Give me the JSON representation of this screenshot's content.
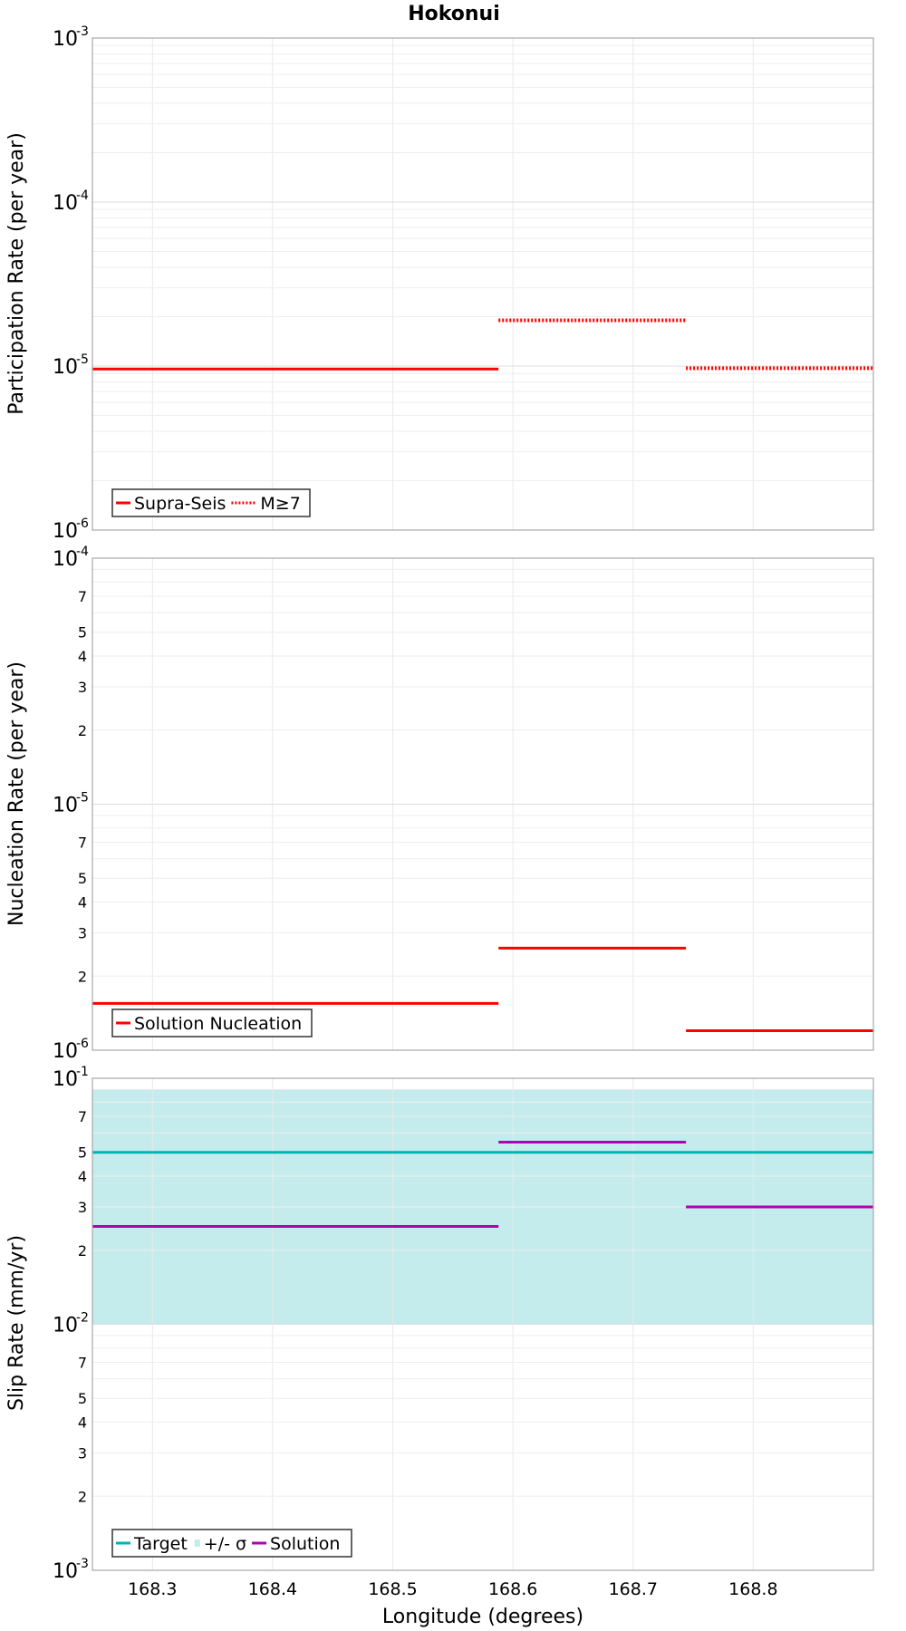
{
  "chart_data": [
    {
      "type": "line",
      "title": "Hokonui",
      "ylabel": "Participation Rate (per year)",
      "yscale": "log",
      "ylim": [
        1e-06,
        0.001
      ],
      "xlim": [
        168.25,
        168.9
      ],
      "ytick_exponents": [
        "-6",
        "-5",
        "-4",
        "-3"
      ],
      "minor_labels": false,
      "grid": true,
      "legend_position": "bottom-left",
      "legend": [
        {
          "label": "Supra-Seis",
          "color": "#ff0000",
          "style": "solid"
        },
        {
          "label": "M≥7",
          "color": "#ff0000",
          "style": "dotted"
        }
      ],
      "series": [
        {
          "name": "Supra-Seis",
          "color": "#ff0000",
          "style": "solid",
          "segments": [
            {
              "x": [
                168.25,
                168.588
              ],
              "y": 9.6e-06
            }
          ]
        },
        {
          "name": "M≥7",
          "color": "#ff0000",
          "style": "dotted",
          "segments": [
            {
              "x": [
                168.588,
                168.744
              ],
              "y": 1.9e-05
            },
            {
              "x": [
                168.744,
                168.9
              ],
              "y": 9.7e-06
            }
          ]
        }
      ]
    },
    {
      "type": "line",
      "ylabel": "Nucleation Rate (per year)",
      "yscale": "log",
      "ylim": [
        1e-06,
        0.0001
      ],
      "xlim": [
        168.25,
        168.9
      ],
      "ytick_exponents": [
        "-6",
        "-5",
        "-4"
      ],
      "minor_labels": true,
      "grid": true,
      "legend_position": "bottom-left",
      "legend": [
        {
          "label": "Solution Nucleation",
          "color": "#ff0000",
          "style": "solid"
        }
      ],
      "series": [
        {
          "name": "Solution Nucleation",
          "color": "#ff0000",
          "style": "solid",
          "segments": [
            {
              "x": [
                168.25,
                168.588
              ],
              "y": 1.55e-06
            },
            {
              "x": [
                168.588,
                168.744
              ],
              "y": 2.6e-06
            },
            {
              "x": [
                168.744,
                168.9
              ],
              "y": 1.2e-06
            }
          ]
        }
      ]
    },
    {
      "type": "line",
      "ylabel": "Slip Rate (mm/yr)",
      "xlabel": "Longitude (degrees)",
      "yscale": "log",
      "ylim": [
        0.001,
        0.1
      ],
      "xlim": [
        168.25,
        168.9
      ],
      "xticks": [
        "168.3",
        "168.4",
        "168.5",
        "168.6",
        "168.7",
        "168.8"
      ],
      "ytick_exponents": [
        "-3",
        "-2",
        "-1"
      ],
      "minor_labels": true,
      "grid": true,
      "legend_position": "bottom-left",
      "legend": [
        {
          "label": "Target",
          "color": "#00b3b3",
          "style": "solid"
        },
        {
          "label": "+/- σ",
          "color": "#c4ecec",
          "style": "band"
        },
        {
          "label": "Solution",
          "color": "#b300b3",
          "style": "solid"
        }
      ],
      "band": {
        "name": "+/- σ",
        "color": "#c4ecec",
        "low": 0.01,
        "high": 0.09
      },
      "series": [
        {
          "name": "Target",
          "color": "#00b3b3",
          "style": "solid",
          "segments": [
            {
              "x": [
                168.25,
                168.9
              ],
              "y": 0.05
            }
          ]
        },
        {
          "name": "Solution",
          "color": "#b300b3",
          "style": "solid",
          "segments": [
            {
              "x": [
                168.25,
                168.588
              ],
              "y": 0.025
            },
            {
              "x": [
                168.588,
                168.744
              ],
              "y": 0.055
            },
            {
              "x": [
                168.744,
                168.9
              ],
              "y": 0.03
            }
          ]
        }
      ]
    }
  ]
}
